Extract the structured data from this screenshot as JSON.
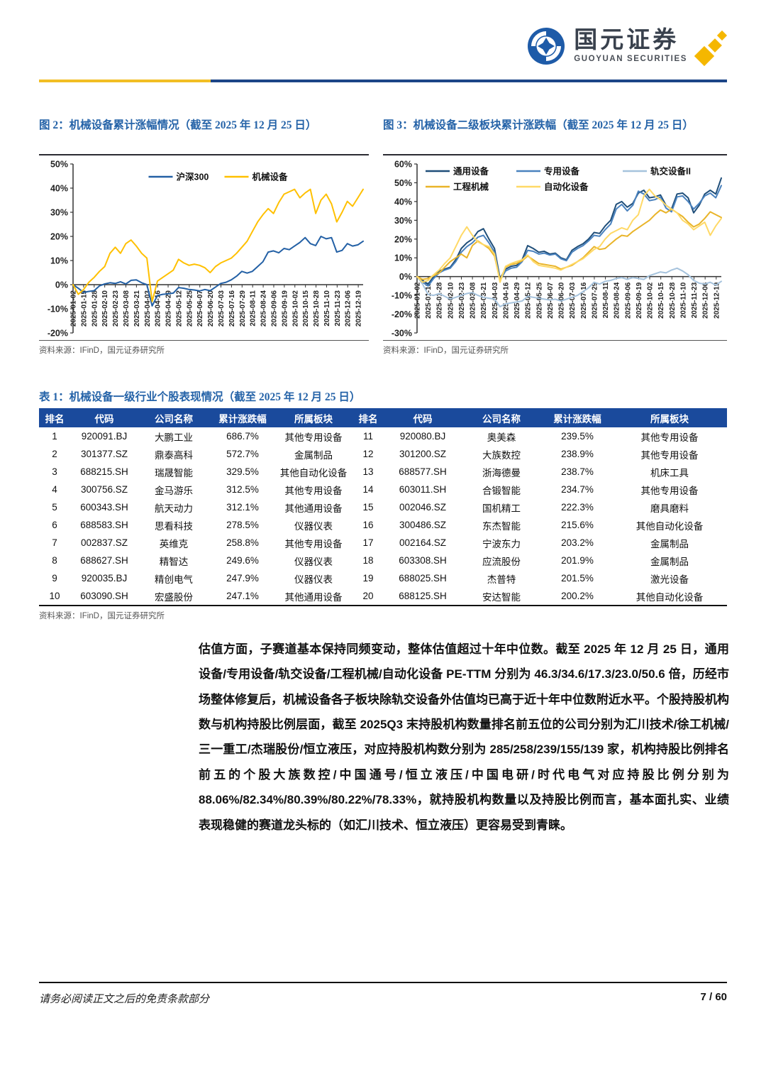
{
  "brand": {
    "name_cn": "国元证券",
    "name_en": "GUOYUAN SECURITIES"
  },
  "colors": {
    "header_bar_blue": "#1a4a9c",
    "title_blue": "#2563a8",
    "rule_yellow": "#f2be24",
    "rule_blue": "#1c4587",
    "brand_gold": "#f5b700",
    "brand_icon_blue": "#1e5ba8"
  },
  "figures": [
    {
      "title": "图 2：机械设备累计涨幅情况（截至 2025 年 12 月 25 日）",
      "source": "资料来源：IFinD，国元证券研究所"
    },
    {
      "title": "图 3：机械设备二级板块累计涨跌幅（截至 2025 年 12 月 25 日）",
      "source": "资料来源：IFinD，国元证券研究所"
    }
  ],
  "chart_data": [
    {
      "type": "line",
      "title": "图 2：机械设备累计涨幅情况（截至 2025 年 12 月 25 日）",
      "ylabel": "",
      "xlabel": "",
      "unit": "%",
      "ylim": [
        -20,
        50
      ],
      "ytick_step": 10,
      "grid": false,
      "legend_layout": "center",
      "legend_rows": [
        [
          "沪深300",
          "机械设备"
        ]
      ],
      "x_tick_interval_days": 13,
      "x_total_days": 357,
      "x_tick_labels": [
        "2025-01-02",
        "2025-01-15",
        "2025-01-28",
        "2025-02-10",
        "2025-02-23",
        "2025-03-08",
        "2025-03-21",
        "2025-04-03",
        "2025-04-16",
        "2025-04-29",
        "2025-05-12",
        "2025-05-25",
        "2025-06-07",
        "2025-06-20",
        "2025-07-03",
        "2025-07-16",
        "2025-07-29",
        "2025-08-11",
        "2025-08-24",
        "2025-09-06",
        "2025-09-19",
        "2025-10-02",
        "2025-10-15",
        "2025-10-28",
        "2025-11-10",
        "2025-11-23",
        "2025-12-06",
        "2025-12-19"
      ],
      "series": [
        {
          "name": "沪深300",
          "color": "#2360a5",
          "values": [
            0,
            -1.5,
            -3.2,
            -2.8,
            -2.5,
            -0.5,
            0.3,
            0.8,
            0.5,
            1.2,
            0.3,
            1.8,
            2.0,
            0.8,
            0.0,
            -8.8,
            -4.5,
            -4.0,
            -3.8,
            -3.5,
            -1.2,
            -1.5,
            -2.0,
            -2.2,
            -2.6,
            -2.0,
            -2.5,
            -1.0,
            0.5,
            1.0,
            2.0,
            3.5,
            5.5,
            4.8,
            5.5,
            7.5,
            9.5,
            13.5,
            14.0,
            13.2,
            15.0,
            14.5,
            16.0,
            17.5,
            19.5,
            17.0,
            16.2,
            20.0,
            19.0,
            19.5,
            13.5,
            14.2,
            17.0,
            16.0,
            16.5,
            18.0
          ]
        },
        {
          "name": "机械设备",
          "color": "#ffc000",
          "values": [
            0,
            -4.0,
            -2.0,
            1.0,
            3.0,
            5.5,
            7.5,
            13.0,
            15.5,
            13.0,
            17.0,
            18.5,
            16.0,
            13.0,
            11.0,
            -7.0,
            1.5,
            3.0,
            4.5,
            6.0,
            10.5,
            9.0,
            8.0,
            8.5,
            8.0,
            7.0,
            5.0,
            7.5,
            9.0,
            10.0,
            11.0,
            13.0,
            15.5,
            18.0,
            22.0,
            26.0,
            29.0,
            31.5,
            29.5,
            34.0,
            37.5,
            38.5,
            39.5,
            36.0,
            38.0,
            39.5,
            29.5,
            35.0,
            37.5,
            33.5,
            26.0,
            30.0,
            34.5,
            32.5,
            36.0,
            39.5
          ]
        }
      ]
    },
    {
      "type": "line",
      "title": "图 3：机械设备二级板块累计涨跌幅（截至 2025 年 12 月 25 日）",
      "ylabel": "",
      "xlabel": "",
      "unit": "%",
      "ylim": [
        -30,
        60
      ],
      "ytick_step": 10,
      "grid": false,
      "legend_layout": "columns",
      "legend_rows": [
        [
          "通用设备",
          "专用设备",
          "轨交设备II"
        ],
        [
          "工程机械",
          "自动化设备"
        ]
      ],
      "x_tick_interval_days": 13,
      "x_total_days": 357,
      "x_tick_labels": [
        "2025-01-02",
        "2025-01-15",
        "2025-01-28",
        "2025-02-10",
        "2025-02-23",
        "2025-03-08",
        "2025-03-21",
        "2025-04-03",
        "2025-04-16",
        "2025-04-29",
        "2025-05-12",
        "2025-05-25",
        "2025-06-07",
        "2025-06-20",
        "2025-07-03",
        "2025-07-16",
        "2025-07-29",
        "2025-08-11",
        "2025-08-24",
        "2025-09-06",
        "2025-09-19",
        "2025-10-02",
        "2025-10-15",
        "2025-10-28",
        "2025-11-10",
        "2025-11-23",
        "2025-12-06",
        "2025-12-19"
      ],
      "series": [
        {
          "name": "通用设备",
          "color": "#1f4e79",
          "values": [
            0,
            -2,
            -4,
            0,
            3,
            4,
            5,
            9,
            15,
            18,
            20,
            24,
            25.5,
            20,
            15,
            -1,
            4,
            5.5,
            6,
            9,
            16.5,
            15,
            13,
            13.5,
            12,
            12.5,
            10,
            9,
            14,
            16,
            17.5,
            20,
            23.5,
            23,
            27,
            30,
            38.5,
            40,
            37,
            39,
            44.5,
            46,
            42,
            42.5,
            43.5,
            38,
            36,
            44,
            44.5,
            42,
            34,
            38,
            44,
            46,
            44,
            52.5
          ]
        },
        {
          "name": "专用设备",
          "color": "#4a82be",
          "values": [
            0,
            -3,
            -5,
            -1,
            2,
            3.5,
            4.5,
            8,
            13,
            16,
            18,
            21,
            22,
            18,
            13,
            -2,
            3,
            4.5,
            5,
            8,
            14,
            13.5,
            12,
            12.5,
            11.5,
            12,
            9.5,
            8.5,
            13,
            15,
            16.5,
            19,
            22,
            21.5,
            25,
            28,
            36,
            38.5,
            35,
            38,
            45.5,
            44,
            40.5,
            41,
            42.5,
            36.5,
            34.5,
            42.5,
            43,
            40,
            36,
            39,
            43,
            44.5,
            42,
            48.5
          ]
        },
        {
          "name": "轨交设备II",
          "color": "#a6c3dd",
          "values": [
            0,
            -4,
            -9.5,
            -10,
            -9,
            -10.5,
            -12,
            -11,
            -10,
            -9,
            -8.5,
            -10,
            -11,
            -11.5,
            -12,
            -16,
            -14.5,
            -14,
            -13.5,
            -13,
            -10.5,
            -11,
            -11.5,
            -12,
            -12.5,
            -12,
            -13,
            -12,
            -11,
            -10,
            -8,
            -6,
            -3,
            -4,
            -2.5,
            -2,
            -1,
            -0.5,
            -1.5,
            -0.5,
            -1,
            -1.5,
            0.5,
            1.5,
            2.5,
            2,
            3.5,
            4.5,
            3,
            1,
            -2,
            -3.5,
            -4,
            -3,
            -4.5,
            -2.5
          ]
        },
        {
          "name": "工程机械",
          "color": "#e9b429",
          "values": [
            0,
            -1.5,
            -1,
            0.5,
            2,
            5,
            8,
            10,
            12,
            10,
            16.5,
            19,
            17,
            15,
            11,
            -2,
            5,
            6.5,
            7,
            8.5,
            11,
            9,
            7,
            6.5,
            6,
            5.5,
            4,
            5,
            6,
            8,
            10,
            13,
            16,
            14.5,
            15,
            17.5,
            20,
            22,
            21.5,
            24,
            26,
            28,
            30,
            33,
            35.5,
            34,
            36,
            34,
            32,
            29,
            26.5,
            28,
            31,
            34.5,
            33,
            31.5
          ]
        },
        {
          "name": "自动化设备",
          "color": "#ffd966",
          "values": [
            0,
            -3,
            -2,
            1,
            3.5,
            7,
            10,
            16,
            22,
            26.5,
            22,
            18.5,
            17,
            16,
            12,
            -3,
            5.5,
            7,
            8,
            9,
            11.5,
            8,
            6,
            5.5,
            5,
            4.5,
            3.5,
            5,
            6.5,
            8,
            9.5,
            12,
            14.5,
            16,
            20,
            23,
            24.5,
            26,
            25,
            30,
            33,
            43,
            46.5,
            43,
            41,
            38,
            36,
            34,
            30,
            28,
            25,
            27,
            29,
            22,
            27,
            31
          ]
        }
      ]
    }
  ],
  "table": {
    "title": "表 1：机械设备一级行业个股表现情况（截至 2025 年 12 月 25 日）",
    "source": "资料来源：IFinD，国元证券研究所",
    "headers": [
      "排名",
      "代码",
      "公司名称",
      "累计涨跌幅",
      "所属板块",
      "排名",
      "代码",
      "公司名称",
      "累计涨跌幅",
      "所属板块"
    ],
    "rows": [
      [
        "1",
        "920091.BJ",
        "大鹏工业",
        "686.7%",
        "其他专用设备",
        "11",
        "920080.BJ",
        "奥美森",
        "239.5%",
        "其他专用设备"
      ],
      [
        "2",
        "301377.SZ",
        "鼎泰高科",
        "572.7%",
        "金属制品",
        "12",
        "301200.SZ",
        "大族数控",
        "238.9%",
        "其他专用设备"
      ],
      [
        "3",
        "688215.SH",
        "瑞晟智能",
        "329.5%",
        "其他自动化设备",
        "13",
        "688577.SH",
        "浙海德曼",
        "238.7%",
        "机床工具"
      ],
      [
        "4",
        "300756.SZ",
        "金马游乐",
        "312.5%",
        "其他专用设备",
        "14",
        "603011.SH",
        "合锻智能",
        "234.7%",
        "其他专用设备"
      ],
      [
        "5",
        "600343.SH",
        "航天动力",
        "312.1%",
        "其他通用设备",
        "15",
        "002046.SZ",
        "国机精工",
        "222.3%",
        "磨具磨料"
      ],
      [
        "6",
        "688583.SH",
        "思看科技",
        "278.5%",
        "仪器仪表",
        "16",
        "300486.SZ",
        "东杰智能",
        "215.6%",
        "其他自动化设备"
      ],
      [
        "7",
        "002837.SZ",
        "英维克",
        "258.8%",
        "其他专用设备",
        "17",
        "002164.SZ",
        "宁波东力",
        "203.2%",
        "金属制品"
      ],
      [
        "8",
        "688627.SH",
        "精智达",
        "249.6%",
        "仪器仪表",
        "18",
        "603308.SH",
        "应流股份",
        "201.9%",
        "金属制品"
      ],
      [
        "9",
        "920035.BJ",
        "精创电气",
        "247.9%",
        "仪器仪表",
        "19",
        "688025.SH",
        "杰普特",
        "201.5%",
        "激光设备"
      ],
      [
        "10",
        "603090.SH",
        "宏盛股份",
        "247.1%",
        "其他通用设备",
        "20",
        "688125.SH",
        "安达智能",
        "200.2%",
        "其他自动化设备"
      ]
    ]
  },
  "paragraph": "估值方面，子赛道基本保持同频变动，整体估值超过十年中位数。截至 2025 年 12 月 25 日，通用设备/专用设备/轨交设备/工程机械/自动化设备 PE-TTM 分别为 46.3/34.6/17.3/23.0/50.6 倍，历经市场整体修复后，机械设备各子板块除轨交设备外估值均已高于近十年中位数附近水平。个股持股机构数与机构持股比例层面，截至 2025Q3 末持股机构数量排名前五位的公司分别为汇川技术/徐工机械/三一重工/杰瑞股份/恒立液压，对应持股机构数分别为 285/258/239/155/139 家，机构持股比例排名前五的个股大族数控/中国通号/恒立液压/中国电研/时代电气对应持股比例分别为 88.06%/82.34%/80.39%/80.22%/78.33%，就持股机构数量以及持股比例而言，基本面扎实、业绩表现稳健的赛道龙头标的（如汇川技术、恒立液压）更容易受到青睐。",
  "footer": {
    "disclaimer": "请务必阅读正文之后的免责条款部分",
    "page_number": "7 / 60"
  }
}
